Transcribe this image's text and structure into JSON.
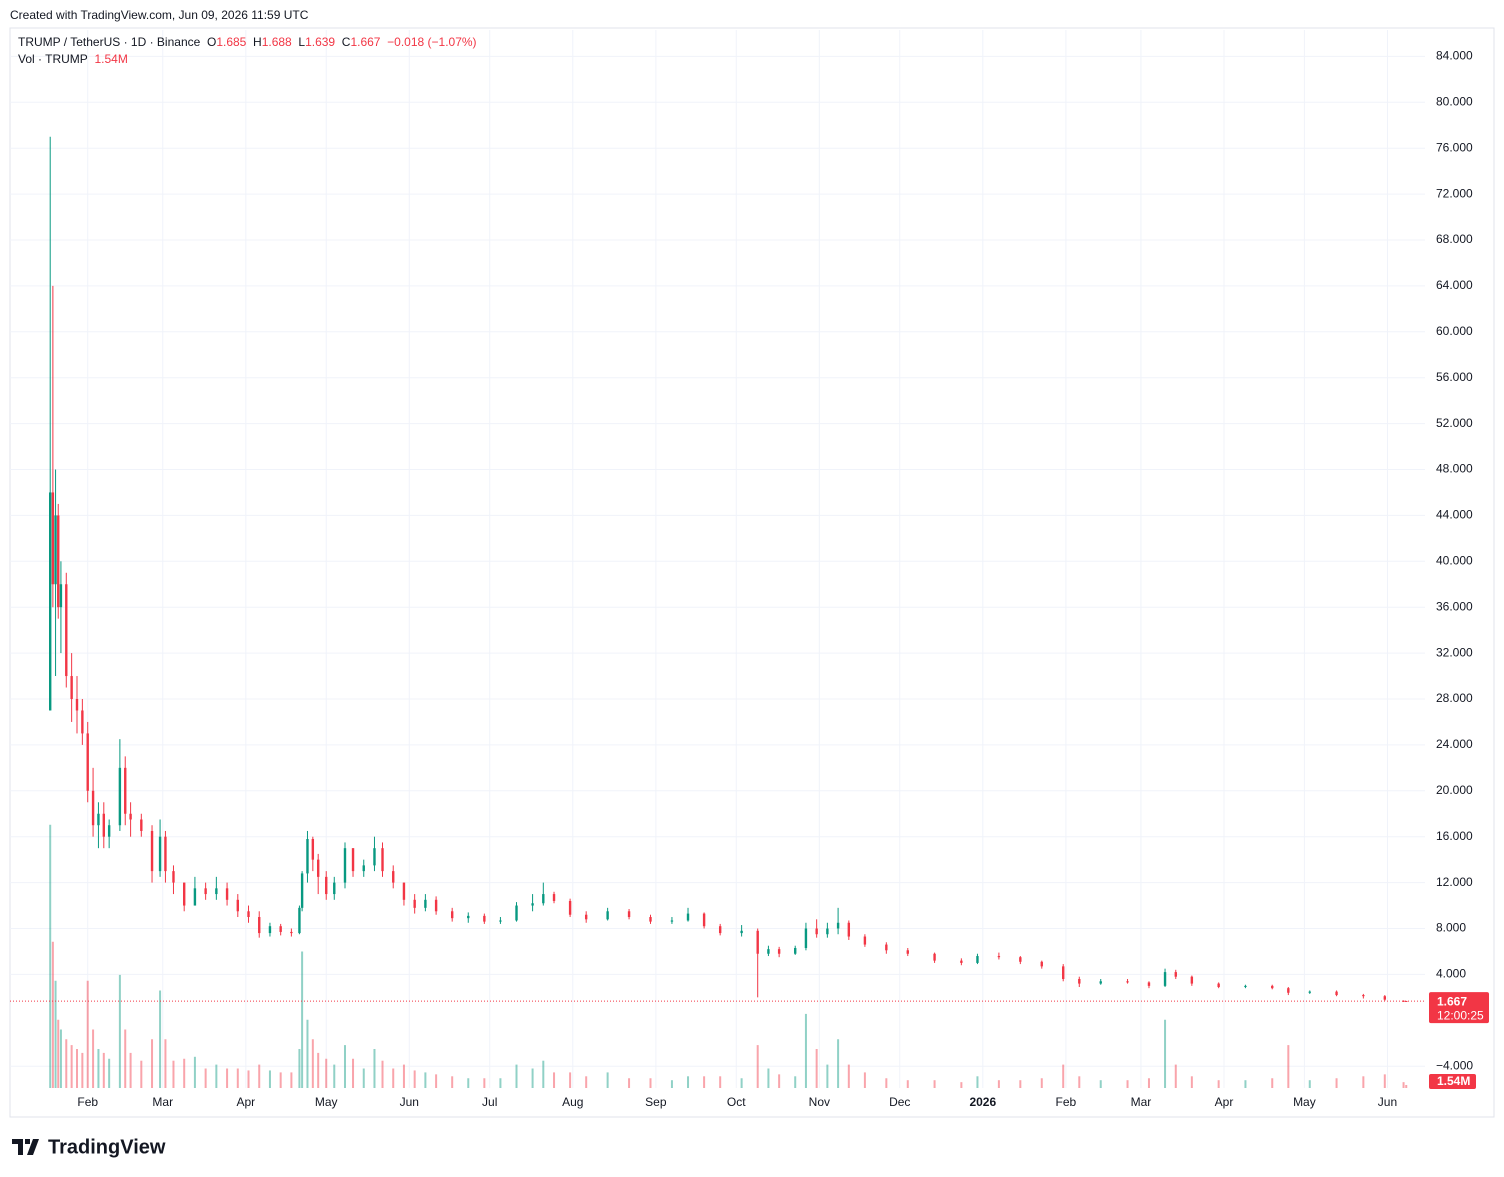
{
  "header": {
    "created": "Created with TradingView.com, Jun 09, 2026 11:59 UTC",
    "symbol": "TRUMP / TetherUS · 1D · Binance",
    "o": "O",
    "h": "H",
    "l": "L",
    "c": "C",
    "change": "−0.018 (−1.07%)",
    "vol_title": "Vol · TRUMP",
    "vol_value": "1.54M",
    "countdown": "12:00:25",
    "brand": "TradingView"
  },
  "chart_data": {
    "type": "candlestick",
    "up_color": "#089981",
    "down_color": "#f23645",
    "grid": true,
    "xlim": [
      -15,
      513
    ],
    "ylim": [
      -5.9,
      86.3
    ],
    "vlim": [
      0,
      140000000
    ],
    "xticks": [
      {
        "value": 14,
        "label": "Feb"
      },
      {
        "value": 42,
        "label": "Mar"
      },
      {
        "value": 73,
        "label": "Apr"
      },
      {
        "value": 103,
        "label": "May"
      },
      {
        "value": 134,
        "label": "Jun"
      },
      {
        "value": 164,
        "label": "Jul"
      },
      {
        "value": 195,
        "label": "Aug"
      },
      {
        "value": 226,
        "label": "Sep"
      },
      {
        "value": 256,
        "label": "Oct"
      },
      {
        "value": 287,
        "label": "Nov"
      },
      {
        "value": 317,
        "label": "Dec"
      },
      {
        "value": 348,
        "label": "2026"
      },
      {
        "value": 379,
        "label": "Feb"
      },
      {
        "value": 407,
        "label": "Mar"
      },
      {
        "value": 438,
        "label": "Apr"
      },
      {
        "value": 468,
        "label": "May"
      },
      {
        "value": 499,
        "label": "Jun"
      }
    ],
    "yticks": [
      {
        "value": -4,
        "label": "−4.000"
      },
      {
        "value": 4,
        "label": "4.000"
      },
      {
        "value": 8,
        "label": "8.000"
      },
      {
        "value": 12,
        "label": "12.000"
      },
      {
        "value": 16,
        "label": "16.000"
      },
      {
        "value": 20,
        "label": "20.000"
      },
      {
        "value": 24,
        "label": "24.000"
      },
      {
        "value": 28,
        "label": "28.000"
      },
      {
        "value": 32,
        "label": "32.000"
      },
      {
        "value": 36,
        "label": "36.000"
      },
      {
        "value": 40,
        "label": "40.000"
      },
      {
        "value": 44,
        "label": "44.000"
      },
      {
        "value": 48,
        "label": "48.000"
      },
      {
        "value": 52,
        "label": "52.000"
      },
      {
        "value": 56,
        "label": "56.000"
      },
      {
        "value": 60,
        "label": "60.000"
      },
      {
        "value": 64,
        "label": "64.000"
      },
      {
        "value": 68,
        "label": "68.000"
      },
      {
        "value": 72,
        "label": "72.000"
      },
      {
        "value": 76,
        "label": "76.000"
      },
      {
        "value": 80,
        "label": "80.000"
      },
      {
        "value": 84,
        "label": "84.000"
      }
    ],
    "candles": [
      {
        "x": 0,
        "open": 27,
        "high": 77,
        "low": 27,
        "close": 46,
        "volume": 135000000
      },
      {
        "x": 1,
        "open": 46,
        "high": 64,
        "low": 36,
        "close": 38,
        "volume": 75000000
      },
      {
        "x": 2,
        "open": 38,
        "high": 48,
        "low": 30,
        "close": 44,
        "volume": 55000000
      },
      {
        "x": 3,
        "open": 44,
        "high": 45,
        "low": 35,
        "close": 36,
        "volume": 35000000
      },
      {
        "x": 4,
        "open": 36,
        "high": 40,
        "low": 32,
        "close": 38,
        "volume": 30000000
      },
      {
        "x": 6,
        "open": 38,
        "high": 39,
        "low": 29,
        "close": 30,
        "volume": 25000000
      },
      {
        "x": 8,
        "open": 30,
        "high": 32,
        "low": 26,
        "close": 28,
        "volume": 22000000
      },
      {
        "x": 10,
        "open": 28,
        "high": 30,
        "low": 25,
        "close": 27,
        "volume": 20000000
      },
      {
        "x": 12,
        "open": 27,
        "high": 28,
        "low": 24,
        "close": 25,
        "volume": 18000000
      },
      {
        "x": 14,
        "open": 25,
        "high": 26,
        "low": 19,
        "close": 20,
        "volume": 55000000
      },
      {
        "x": 16,
        "open": 20,
        "high": 22,
        "low": 16,
        "close": 17,
        "volume": 30000000
      },
      {
        "x": 18,
        "open": 17,
        "high": 19,
        "low": 15,
        "close": 18,
        "volume": 20000000
      },
      {
        "x": 20,
        "open": 18,
        "high": 19,
        "low": 15,
        "close": 16,
        "volume": 18000000
      },
      {
        "x": 22,
        "open": 16,
        "high": 17.5,
        "low": 15,
        "close": 17,
        "volume": 15000000
      },
      {
        "x": 26,
        "open": 17,
        "high": 24.5,
        "low": 16.5,
        "close": 22,
        "volume": 58000000
      },
      {
        "x": 28,
        "open": 22,
        "high": 23,
        "low": 17,
        "close": 18,
        "volume": 30000000
      },
      {
        "x": 30,
        "open": 18,
        "high": 19,
        "low": 16,
        "close": 17.5,
        "volume": 18000000
      },
      {
        "x": 34,
        "open": 17.5,
        "high": 18,
        "low": 16,
        "close": 16.5,
        "volume": 14000000
      },
      {
        "x": 38,
        "open": 16.5,
        "high": 17,
        "low": 12,
        "close": 13,
        "volume": 25000000
      },
      {
        "x": 41,
        "open": 13,
        "high": 17.5,
        "low": 12.5,
        "close": 16,
        "volume": 50000000
      },
      {
        "x": 43,
        "open": 16,
        "high": 16.5,
        "low": 12,
        "close": 13,
        "volume": 25000000
      },
      {
        "x": 46,
        "open": 13,
        "high": 13.5,
        "low": 11,
        "close": 12,
        "volume": 14000000
      },
      {
        "x": 50,
        "open": 12,
        "high": 12,
        "low": 9.5,
        "close": 10,
        "volume": 15000000
      },
      {
        "x": 54,
        "open": 10,
        "high": 12.5,
        "low": 10,
        "close": 11.5,
        "volume": 16000000
      },
      {
        "x": 58,
        "open": 11.5,
        "high": 12,
        "low": 10.5,
        "close": 11,
        "volume": 10000000
      },
      {
        "x": 62,
        "open": 11,
        "high": 12.5,
        "low": 10.5,
        "close": 11.5,
        "volume": 12000000
      },
      {
        "x": 66,
        "open": 11.5,
        "high": 12,
        "low": 10,
        "close": 10.5,
        "volume": 10000000
      },
      {
        "x": 70,
        "open": 10.5,
        "high": 11,
        "low": 9,
        "close": 9.5,
        "volume": 10000000
      },
      {
        "x": 74,
        "open": 9.5,
        "high": 10,
        "low": 8.5,
        "close": 9,
        "volume": 9000000
      },
      {
        "x": 78,
        "open": 9,
        "high": 9.5,
        "low": 7.2,
        "close": 7.6,
        "volume": 12000000
      },
      {
        "x": 82,
        "open": 7.6,
        "high": 8.5,
        "low": 7.3,
        "close": 8.2,
        "volume": 9000000
      },
      {
        "x": 86,
        "open": 8.2,
        "high": 8.4,
        "low": 7.4,
        "close": 7.7,
        "volume": 8000000
      },
      {
        "x": 90,
        "open": 7.7,
        "high": 8,
        "low": 7.3,
        "close": 7.6,
        "volume": 8000000
      },
      {
        "x": 93,
        "open": 7.6,
        "high": 10,
        "low": 7.5,
        "close": 9.8,
        "volume": 20000000
      },
      {
        "x": 94,
        "open": 9.8,
        "high": 13,
        "low": 9.5,
        "close": 12.8,
        "volume": 70000000
      },
      {
        "x": 96,
        "open": 12.8,
        "high": 16.5,
        "low": 12,
        "close": 15.8,
        "volume": 35000000
      },
      {
        "x": 98,
        "open": 15.8,
        "high": 16,
        "low": 13,
        "close": 14,
        "volume": 25000000
      },
      {
        "x": 100,
        "open": 14,
        "high": 14.5,
        "low": 11,
        "close": 12.5,
        "volume": 18000000
      },
      {
        "x": 103,
        "open": 12.5,
        "high": 13,
        "low": 10.5,
        "close": 11,
        "volume": 15000000
      },
      {
        "x": 106,
        "open": 11,
        "high": 12.5,
        "low": 10.5,
        "close": 12,
        "volume": 12000000
      },
      {
        "x": 110,
        "open": 12,
        "high": 15.5,
        "low": 11.5,
        "close": 15,
        "volume": 22000000
      },
      {
        "x": 113,
        "open": 15,
        "high": 15,
        "low": 12.5,
        "close": 13,
        "volume": 15000000
      },
      {
        "x": 117,
        "open": 13,
        "high": 14,
        "low": 12.5,
        "close": 13.5,
        "volume": 10000000
      },
      {
        "x": 121,
        "open": 13.5,
        "high": 16,
        "low": 13,
        "close": 15,
        "volume": 20000000
      },
      {
        "x": 124,
        "open": 15,
        "high": 15.5,
        "low": 12.5,
        "close": 13,
        "volume": 14000000
      },
      {
        "x": 128,
        "open": 13,
        "high": 13.5,
        "low": 11.5,
        "close": 12,
        "volume": 10000000
      },
      {
        "x": 132,
        "open": 12,
        "high": 12,
        "low": 10,
        "close": 10.5,
        "volume": 12000000
      },
      {
        "x": 136,
        "open": 10.5,
        "high": 11,
        "low": 9.3,
        "close": 9.8,
        "volume": 9000000
      },
      {
        "x": 140,
        "open": 9.8,
        "high": 11,
        "low": 9.5,
        "close": 10.5,
        "volume": 8000000
      },
      {
        "x": 144,
        "open": 10.5,
        "high": 10.8,
        "low": 9.2,
        "close": 9.5,
        "volume": 7000000
      },
      {
        "x": 150,
        "open": 9.5,
        "high": 9.8,
        "low": 8.6,
        "close": 8.9,
        "volume": 6000000
      },
      {
        "x": 156,
        "open": 8.9,
        "high": 9.4,
        "low": 8.5,
        "close": 9.1,
        "volume": 5000000
      },
      {
        "x": 162,
        "open": 9.1,
        "high": 9.3,
        "low": 8.4,
        "close": 8.6,
        "volume": 5000000
      },
      {
        "x": 168,
        "open": 8.6,
        "high": 9,
        "low": 8.4,
        "close": 8.7,
        "volume": 5000000
      },
      {
        "x": 174,
        "open": 8.7,
        "high": 10.3,
        "low": 8.6,
        "close": 10,
        "volume": 12000000
      },
      {
        "x": 180,
        "open": 10,
        "high": 11,
        "low": 9.5,
        "close": 10.2,
        "volume": 10000000
      },
      {
        "x": 184,
        "open": 10.2,
        "high": 12,
        "low": 10,
        "close": 11,
        "volume": 14000000
      },
      {
        "x": 188,
        "open": 11,
        "high": 11.2,
        "low": 10.2,
        "close": 10.4,
        "volume": 8000000
      },
      {
        "x": 194,
        "open": 10.4,
        "high": 10.6,
        "low": 9,
        "close": 9.2,
        "volume": 8000000
      },
      {
        "x": 200,
        "open": 9.2,
        "high": 9.5,
        "low": 8.5,
        "close": 8.8,
        "volume": 6000000
      },
      {
        "x": 208,
        "open": 8.8,
        "high": 9.8,
        "low": 8.7,
        "close": 9.5,
        "volume": 8000000
      },
      {
        "x": 216,
        "open": 9.5,
        "high": 9.7,
        "low": 8.8,
        "close": 9,
        "volume": 5000000
      },
      {
        "x": 224,
        "open": 9,
        "high": 9.2,
        "low": 8.4,
        "close": 8.6,
        "volume": 5000000
      },
      {
        "x": 232,
        "open": 8.6,
        "high": 9,
        "low": 8.4,
        "close": 8.7,
        "volume": 4000000
      },
      {
        "x": 238,
        "open": 8.7,
        "high": 9.8,
        "low": 8.6,
        "close": 9.3,
        "volume": 6000000
      },
      {
        "x": 244,
        "open": 9.3,
        "high": 9.4,
        "low": 8,
        "close": 8.2,
        "volume": 6000000
      },
      {
        "x": 250,
        "open": 8.2,
        "high": 8.4,
        "low": 7.4,
        "close": 7.6,
        "volume": 6000000
      },
      {
        "x": 258,
        "open": 7.6,
        "high": 8.3,
        "low": 7.3,
        "close": 7.8,
        "volume": 5000000
      },
      {
        "x": 264,
        "open": 7.8,
        "high": 8,
        "low": 2,
        "close": 5.8,
        "volume": 22000000
      },
      {
        "x": 268,
        "open": 5.8,
        "high": 6.5,
        "low": 5.6,
        "close": 6.2,
        "volume": 10000000
      },
      {
        "x": 272,
        "open": 6.2,
        "high": 6.4,
        "low": 5.5,
        "close": 5.8,
        "volume": 7000000
      },
      {
        "x": 278,
        "open": 5.8,
        "high": 6.5,
        "low": 5.7,
        "close": 6.3,
        "volume": 6000000
      },
      {
        "x": 282,
        "open": 6.3,
        "high": 8.5,
        "low": 6.1,
        "close": 8,
        "volume": 38000000
      },
      {
        "x": 286,
        "open": 8,
        "high": 8.8,
        "low": 7.2,
        "close": 7.5,
        "volume": 20000000
      },
      {
        "x": 290,
        "open": 7.5,
        "high": 8.5,
        "low": 7.2,
        "close": 8,
        "volume": 12000000
      },
      {
        "x": 294,
        "open": 8,
        "high": 9.8,
        "low": 7.5,
        "close": 8.5,
        "volume": 25000000
      },
      {
        "x": 298,
        "open": 8.5,
        "high": 8.7,
        "low": 7,
        "close": 7.3,
        "volume": 12000000
      },
      {
        "x": 304,
        "open": 7.3,
        "high": 7.5,
        "low": 6.4,
        "close": 6.6,
        "volume": 8000000
      },
      {
        "x": 312,
        "open": 6.6,
        "high": 6.8,
        "low": 5.8,
        "close": 6.1,
        "volume": 5000000
      },
      {
        "x": 320,
        "open": 6.1,
        "high": 6.3,
        "low": 5.6,
        "close": 5.8,
        "volume": 4000000
      },
      {
        "x": 330,
        "open": 5.8,
        "high": 5.9,
        "low": 5,
        "close": 5.2,
        "volume": 4000000
      },
      {
        "x": 340,
        "open": 5.2,
        "high": 5.4,
        "low": 4.8,
        "close": 5,
        "volume": 3000000
      },
      {
        "x": 346,
        "open": 5,
        "high": 5.8,
        "low": 4.9,
        "close": 5.6,
        "volume": 6000000
      },
      {
        "x": 354,
        "open": 5.6,
        "high": 5.9,
        "low": 5.3,
        "close": 5.5,
        "volume": 4000000
      },
      {
        "x": 362,
        "open": 5.5,
        "high": 5.6,
        "low": 4.9,
        "close": 5.1,
        "volume": 4000000
      },
      {
        "x": 370,
        "open": 5.1,
        "high": 5.2,
        "low": 4.5,
        "close": 4.7,
        "volume": 5000000
      },
      {
        "x": 378,
        "open": 4.7,
        "high": 4.9,
        "low": 3.4,
        "close": 3.6,
        "volume": 12000000
      },
      {
        "x": 384,
        "open": 3.6,
        "high": 3.8,
        "low": 2.9,
        "close": 3.2,
        "volume": 6000000
      },
      {
        "x": 392,
        "open": 3.2,
        "high": 3.6,
        "low": 3.1,
        "close": 3.4,
        "volume": 4000000
      },
      {
        "x": 402,
        "open": 3.4,
        "high": 3.6,
        "low": 3.2,
        "close": 3.3,
        "volume": 4000000
      },
      {
        "x": 410,
        "open": 3.3,
        "high": 3.4,
        "low": 2.8,
        "close": 3,
        "volume": 5000000
      },
      {
        "x": 416,
        "open": 3,
        "high": 4.5,
        "low": 2.9,
        "close": 4.2,
        "volume": 35000000
      },
      {
        "x": 420,
        "open": 4.2,
        "high": 4.4,
        "low": 3.6,
        "close": 3.8,
        "volume": 12000000
      },
      {
        "x": 426,
        "open": 3.8,
        "high": 3.9,
        "low": 3,
        "close": 3.2,
        "volume": 6000000
      },
      {
        "x": 436,
        "open": 3.2,
        "high": 3.3,
        "low": 2.8,
        "close": 2.9,
        "volume": 4000000
      },
      {
        "x": 446,
        "open": 2.9,
        "high": 3.1,
        "low": 2.8,
        "close": 3,
        "volume": 4000000
      },
      {
        "x": 456,
        "open": 3,
        "high": 3.1,
        "low": 2.7,
        "close": 2.8,
        "volume": 5000000
      },
      {
        "x": 462,
        "open": 2.8,
        "high": 2.9,
        "low": 2.2,
        "close": 2.4,
        "volume": 22000000
      },
      {
        "x": 470,
        "open": 2.4,
        "high": 2.6,
        "low": 2.3,
        "close": 2.5,
        "volume": 4000000
      },
      {
        "x": 480,
        "open": 2.5,
        "high": 2.6,
        "low": 2.1,
        "close": 2.2,
        "volume": 5000000
      },
      {
        "x": 490,
        "open": 2.2,
        "high": 2.3,
        "low": 1.9,
        "close": 2.1,
        "volume": 6000000
      },
      {
        "x": 498,
        "open": 2.1,
        "high": 2.2,
        "low": 1.7,
        "close": 1.8,
        "volume": 7000000
      },
      {
        "x": 505,
        "open": 1.7,
        "high": 1.74,
        "low": 1.6,
        "close": 1.685,
        "volume": 3000000
      },
      {
        "x": 506,
        "open": 1.685,
        "high": 1.688,
        "low": 1.639,
        "close": 1.667,
        "volume": 1540000
      }
    ]
  }
}
